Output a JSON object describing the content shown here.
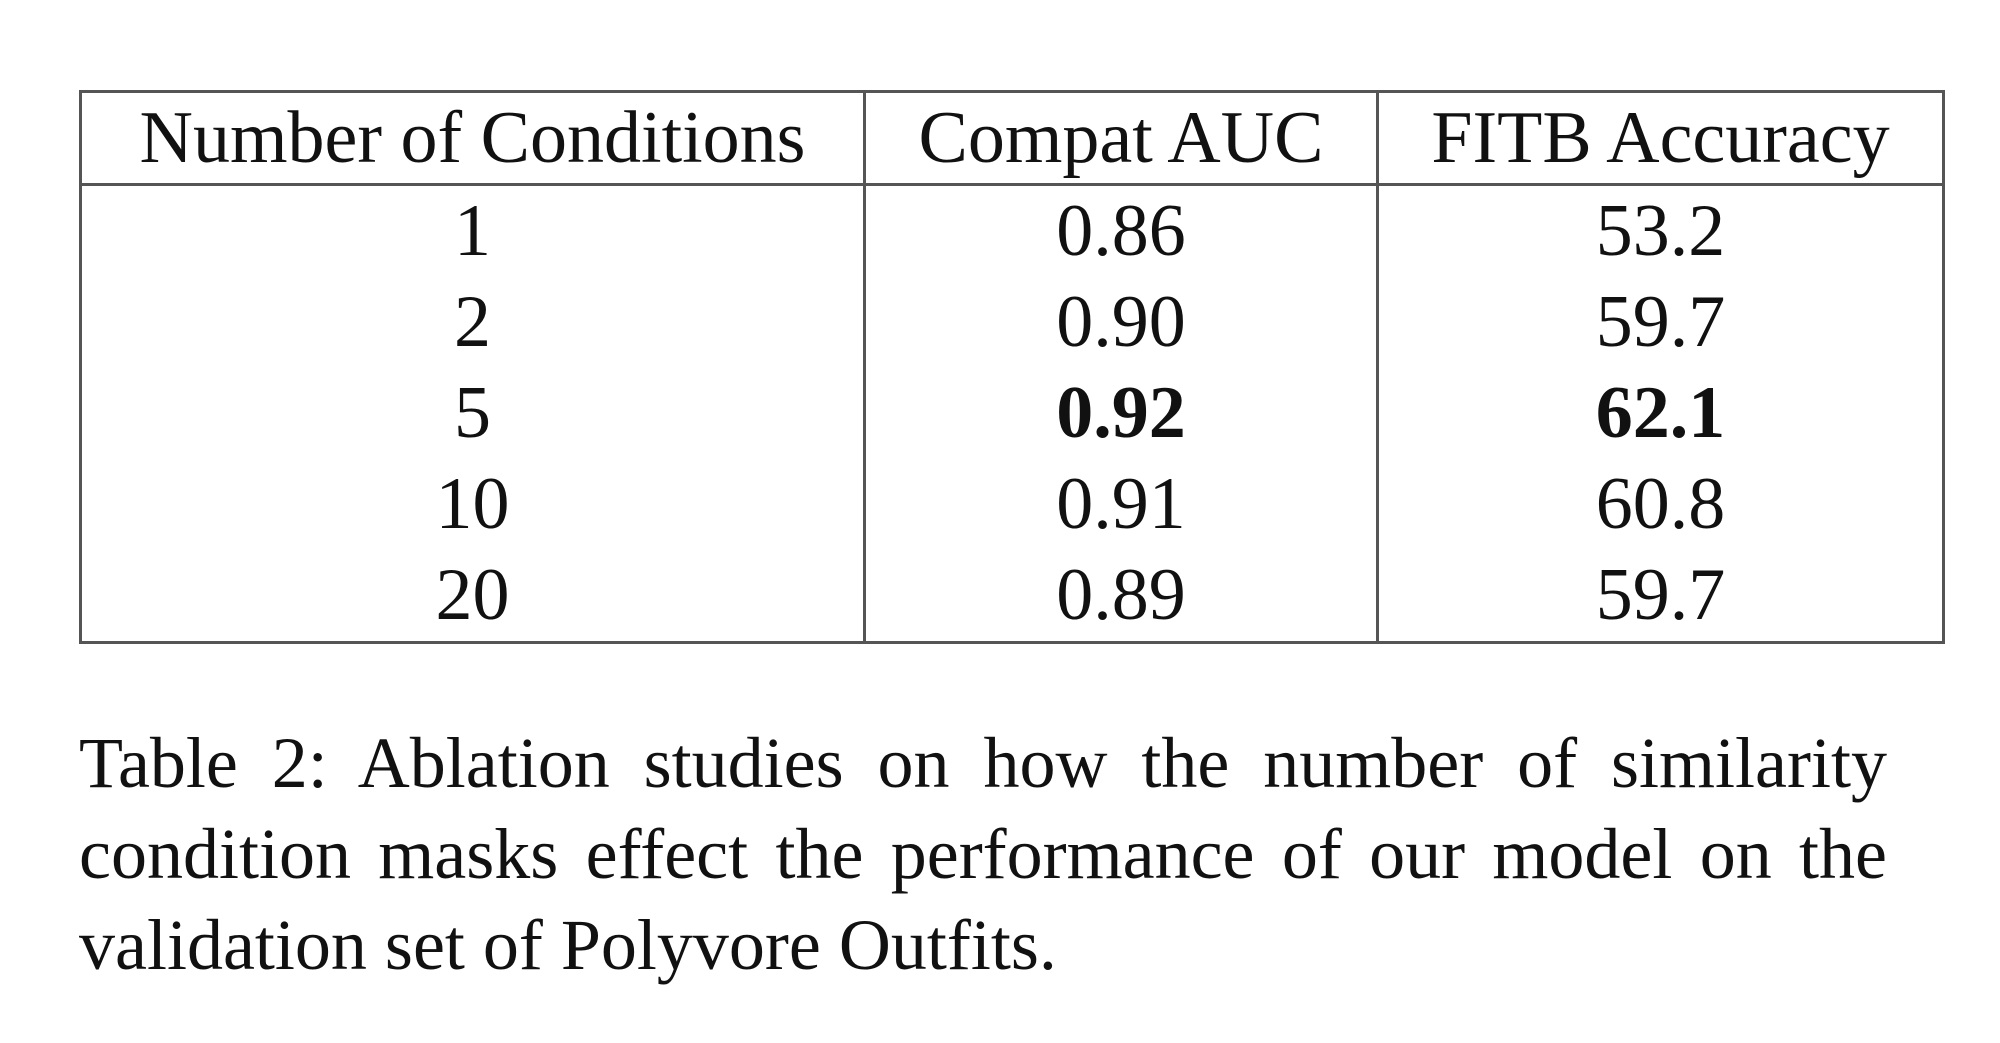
{
  "table": {
    "header": [
      "Number of Conditions",
      "Compat AUC",
      "FITB Accuracy"
    ],
    "rows": [
      [
        "1",
        "0.86",
        "53.2"
      ],
      [
        "2",
        "0.90",
        "59.7"
      ],
      [
        "5",
        "0.92",
        "62.1"
      ],
      [
        "10",
        "0.91",
        "60.8"
      ],
      [
        "20",
        "0.89",
        "59.7"
      ]
    ]
  },
  "caption": "Table 2: Ablation studies on how the number of similarity condition masks effect the performance of our model on the validation set of Polyvore Outfits."
}
